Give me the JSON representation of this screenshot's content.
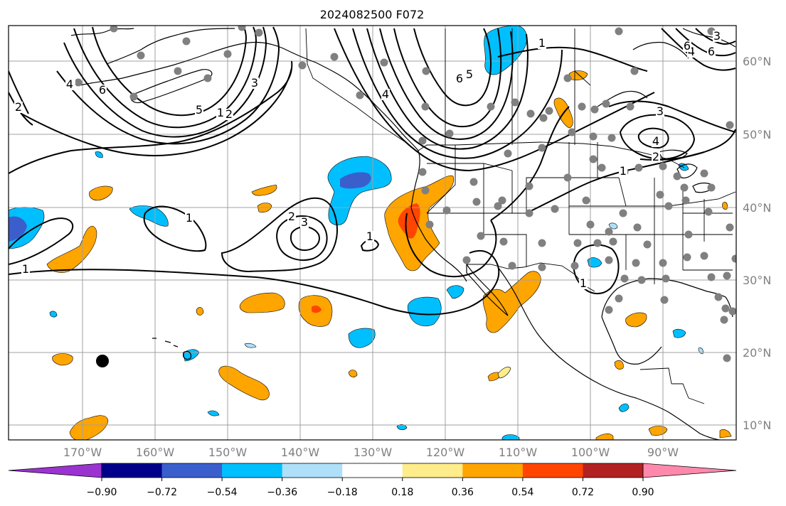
{
  "title": "2024082500 F072",
  "map": {
    "lon_labels": [
      "170°W",
      "160°W",
      "150°W",
      "140°W",
      "130°W",
      "120°W",
      "110°W",
      "100°W",
      "90°W"
    ],
    "lat_labels": [
      "60°N",
      "50°N",
      "40°N",
      "30°N",
      "20°N",
      "10°N"
    ],
    "colorbar": {
      "ticks": [
        "−0.90",
        "−0.72",
        "−0.54",
        "−0.36",
        "−0.18",
        "0.18",
        "0.36",
        "0.54",
        "0.72",
        "0.90"
      ],
      "colors": [
        "#9b33d1",
        "#00008b",
        "#3a5fcd",
        "#00bfff",
        "#afe0fa",
        "#ffffff",
        "#ffec8b",
        "#ffa500",
        "#ff4500",
        "#b22222",
        "#ff89ad"
      ]
    },
    "contour_labels": [
      "1",
      "1",
      "1",
      "1",
      "1",
      "1",
      "1",
      "1",
      "2",
      "2",
      "2",
      "2",
      "3",
      "3",
      "3",
      "3",
      "4",
      "4",
      "4",
      "4",
      "5",
      "5",
      "6",
      "6",
      "6",
      "6"
    ],
    "colors": {
      "frame": "#000000",
      "grid": "#a0a0a0",
      "tick_text": "#808080",
      "station_dot": "#808080"
    }
  }
}
